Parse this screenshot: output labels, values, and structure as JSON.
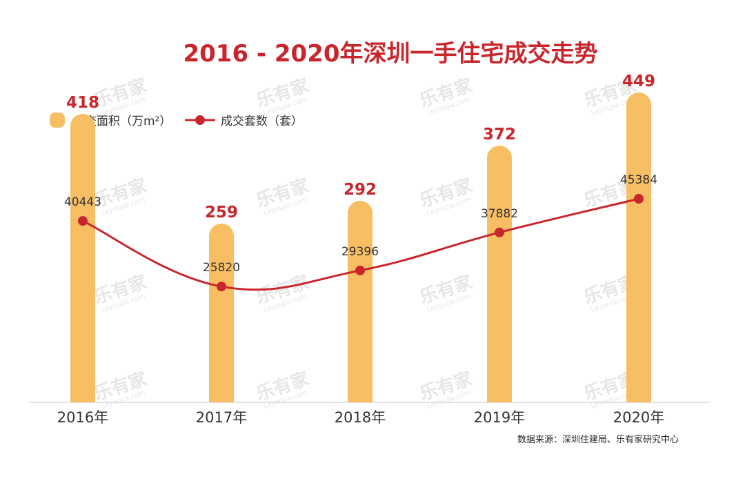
{
  "watermark": {
    "text": "乐有家",
    "sub": "Leyoujia.com"
  },
  "source": "数据来源：深圳住建局、乐有家研究中心",
  "chart_data": {
    "type": "bar",
    "title": "2016 - 2020年深圳一手住宅成交走势",
    "categories": [
      "2016年",
      "2017年",
      "2018年",
      "2019年",
      "2020年"
    ],
    "series": [
      {
        "name": "成交面积（万m²）",
        "kind": "bar",
        "values": [
          418,
          259,
          292,
          372,
          449
        ],
        "color": "#f7be64",
        "label_color": "#c8262c"
      },
      {
        "name": "成交套数（套）",
        "kind": "line",
        "values": [
          40443,
          25820,
          29396,
          37882,
          45384
        ],
        "color": "#c8262c"
      }
    ],
    "bar_ylim": [
      0,
      520
    ],
    "line_ylim": [
      0,
      80000
    ],
    "legend_position": "top-left",
    "grid": false
  }
}
